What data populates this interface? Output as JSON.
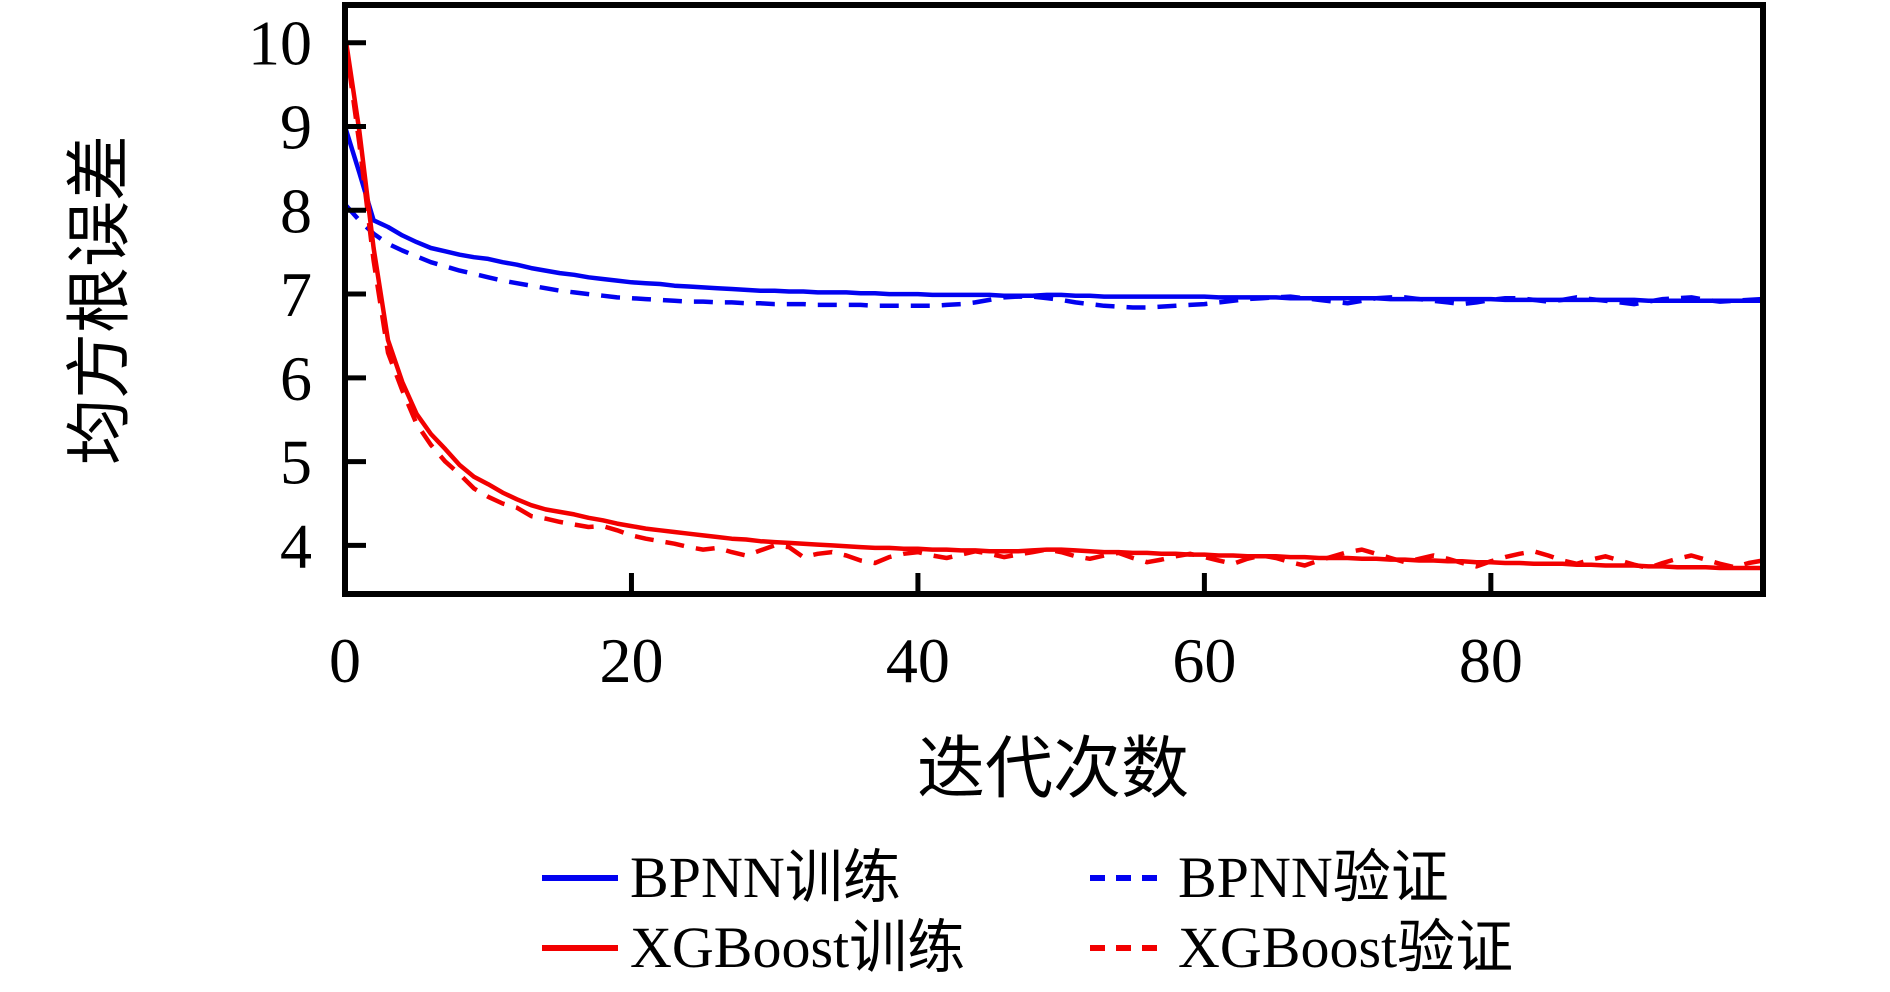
{
  "chart_data": {
    "type": "line",
    "title": "",
    "xlabel": "迭代次数",
    "ylabel": "均方根误差",
    "xlim": [
      0,
      99
    ],
    "ylim": [
      3.42,
      10.45
    ],
    "xticks": [
      0,
      20,
      40,
      60,
      80
    ],
    "yticks": [
      10,
      9,
      8,
      7,
      6,
      5,
      4
    ],
    "grid": false,
    "legend_position": "below-chart, 2 columns, no frame",
    "background_color": "#ffffff",
    "axis_color": "#000000",
    "x_start": 0,
    "x_step": 1,
    "series": [
      {
        "id": "bpnn-train",
        "name": "BPNN训练",
        "color": "#0202f0",
        "linestyle": "solid",
        "values": [
          9.0,
          8.45,
          7.88,
          7.8,
          7.7,
          7.62,
          7.55,
          7.51,
          7.47,
          7.44,
          7.42,
          7.38,
          7.35,
          7.31,
          7.28,
          7.25,
          7.23,
          7.2,
          7.18,
          7.16,
          7.14,
          7.13,
          7.12,
          7.1,
          7.09,
          7.08,
          7.07,
          7.06,
          7.05,
          7.04,
          7.04,
          7.03,
          7.03,
          7.02,
          7.02,
          7.02,
          7.01,
          7.01,
          7.0,
          7.0,
          7.0,
          6.99,
          6.99,
          6.99,
          6.99,
          6.99,
          6.98,
          6.98,
          6.98,
          6.99,
          6.99,
          6.98,
          6.98,
          6.97,
          6.97,
          6.97,
          6.97,
          6.97,
          6.97,
          6.97,
          6.97,
          6.96,
          6.96,
          6.96,
          6.96,
          6.96,
          6.95,
          6.95,
          6.95,
          6.95,
          6.95,
          6.95,
          6.95,
          6.94,
          6.94,
          6.94,
          6.94,
          6.94,
          6.94,
          6.94,
          6.94,
          6.93,
          6.93,
          6.93,
          6.93,
          6.93,
          6.93,
          6.93,
          6.93,
          6.93,
          6.93,
          6.92,
          6.92,
          6.92,
          6.92,
          6.92,
          6.92,
          6.92,
          6.92,
          6.92
        ]
      },
      {
        "id": "bpnn-val",
        "name": "BPNN验证",
        "color": "#0202f0",
        "linestyle": "dashed",
        "values": [
          8.07,
          7.88,
          7.72,
          7.6,
          7.52,
          7.45,
          7.38,
          7.33,
          7.28,
          7.24,
          7.2,
          7.16,
          7.13,
          7.1,
          7.07,
          7.04,
          7.02,
          7.0,
          6.98,
          6.96,
          6.95,
          6.94,
          6.93,
          6.92,
          6.91,
          6.91,
          6.9,
          6.9,
          6.89,
          6.89,
          6.88,
          6.88,
          6.88,
          6.87,
          6.87,
          6.87,
          6.87,
          6.86,
          6.86,
          6.86,
          6.86,
          6.86,
          6.87,
          6.88,
          6.9,
          6.93,
          6.96,
          6.97,
          6.97,
          6.95,
          6.93,
          6.9,
          6.88,
          6.86,
          6.85,
          6.84,
          6.84,
          6.85,
          6.86,
          6.87,
          6.88,
          6.9,
          6.92,
          6.94,
          6.95,
          6.96,
          6.97,
          6.95,
          6.93,
          6.91,
          6.89,
          6.92,
          6.95,
          6.96,
          6.96,
          6.94,
          6.92,
          6.9,
          6.88,
          6.9,
          6.93,
          6.95,
          6.95,
          6.93,
          6.91,
          6.93,
          6.96,
          6.94,
          6.92,
          6.9,
          6.88,
          6.91,
          6.94,
          6.95,
          6.96,
          6.93,
          6.91,
          6.92,
          6.93,
          6.94
        ]
      },
      {
        "id": "xgboost-train",
        "name": "XGBoost训练",
        "color": "#f20000",
        "linestyle": "solid",
        "values": [
          10.1,
          8.95,
          7.55,
          6.45,
          5.95,
          5.57,
          5.33,
          5.15,
          4.96,
          4.82,
          4.73,
          4.63,
          4.55,
          4.48,
          4.43,
          4.4,
          4.37,
          4.33,
          4.3,
          4.26,
          4.23,
          4.2,
          4.18,
          4.16,
          4.14,
          4.12,
          4.1,
          4.08,
          4.07,
          4.05,
          4.04,
          4.03,
          4.02,
          4.01,
          4.0,
          3.99,
          3.98,
          3.97,
          3.97,
          3.96,
          3.96,
          3.95,
          3.95,
          3.94,
          3.94,
          3.93,
          3.93,
          3.93,
          3.94,
          3.95,
          3.95,
          3.94,
          3.93,
          3.92,
          3.92,
          3.91,
          3.91,
          3.9,
          3.9,
          3.89,
          3.89,
          3.88,
          3.88,
          3.87,
          3.87,
          3.87,
          3.86,
          3.86,
          3.85,
          3.85,
          3.85,
          3.84,
          3.84,
          3.83,
          3.83,
          3.82,
          3.82,
          3.81,
          3.81,
          3.8,
          3.8,
          3.79,
          3.79,
          3.78,
          3.78,
          3.78,
          3.77,
          3.77,
          3.76,
          3.76,
          3.76,
          3.75,
          3.75,
          3.74,
          3.74,
          3.74,
          3.73,
          3.73,
          3.73,
          3.73
        ]
      },
      {
        "id": "xgboost-val",
        "name": "XGBoost验证",
        "color": "#f20000",
        "linestyle": "dashed",
        "values": [
          10.05,
          8.8,
          7.4,
          6.3,
          5.85,
          5.45,
          5.2,
          5.0,
          4.85,
          4.68,
          4.58,
          4.5,
          4.45,
          4.35,
          4.32,
          4.28,
          4.25,
          4.22,
          4.23,
          4.18,
          4.12,
          4.08,
          4.05,
          4.02,
          3.98,
          3.95,
          3.97,
          3.92,
          3.88,
          3.94,
          4.0,
          3.98,
          3.86,
          3.9,
          3.92,
          3.88,
          3.82,
          3.79,
          3.86,
          3.9,
          3.92,
          3.88,
          3.85,
          3.89,
          3.93,
          3.9,
          3.86,
          3.89,
          3.92,
          3.95,
          3.92,
          3.87,
          3.84,
          3.88,
          3.91,
          3.85,
          3.8,
          3.83,
          3.87,
          3.9,
          3.86,
          3.82,
          3.78,
          3.84,
          3.88,
          3.85,
          3.8,
          3.76,
          3.82,
          3.87,
          3.92,
          3.95,
          3.9,
          3.85,
          3.8,
          3.84,
          3.88,
          3.84,
          3.79,
          3.75,
          3.81,
          3.86,
          3.9,
          3.93,
          3.88,
          3.82,
          3.78,
          3.83,
          3.87,
          3.82,
          3.77,
          3.73,
          3.79,
          3.84,
          3.88,
          3.83,
          3.78,
          3.74,
          3.79,
          3.82
        ]
      }
    ]
  }
}
